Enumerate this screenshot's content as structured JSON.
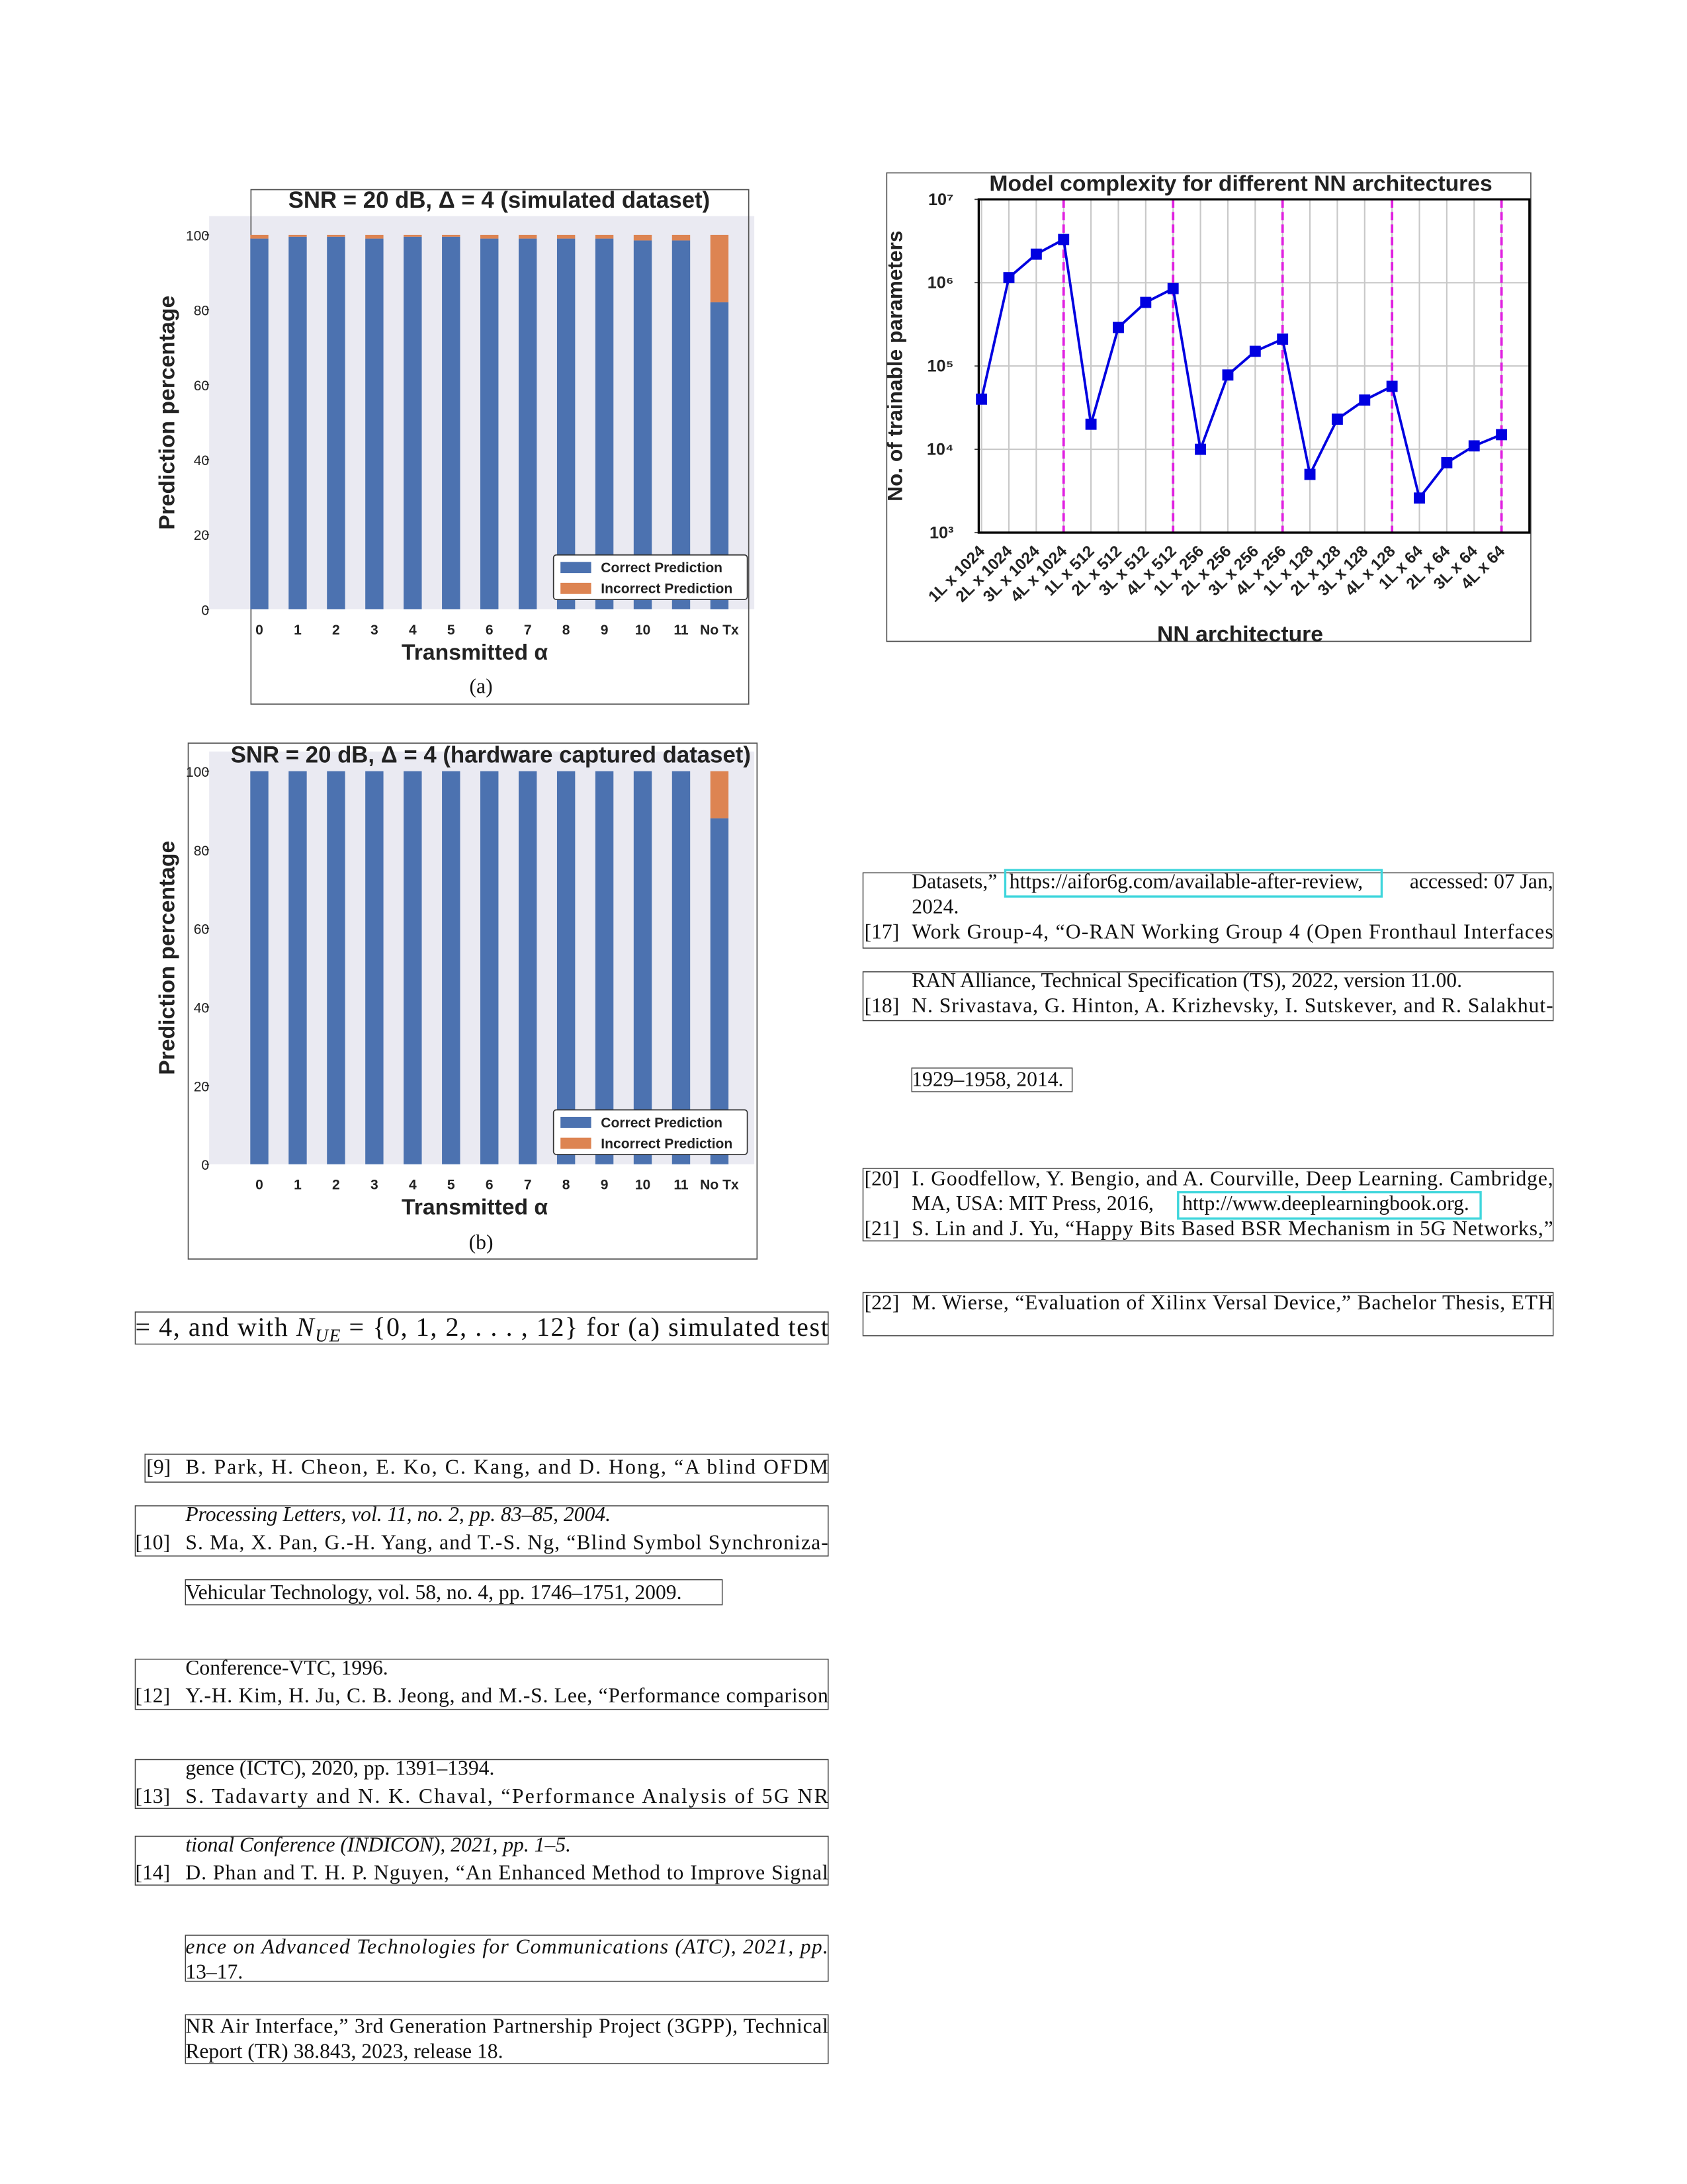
{
  "chart_data": [
    {
      "type": "bar",
      "stacked": true,
      "title": "SNR = 20 dB, Δ = 4 (simulated dataset)",
      "x_label": "Transmitted α",
      "y_label": "Prediction percentage",
      "caption": "(a)",
      "categories": [
        "0",
        "1",
        "2",
        "3",
        "4",
        "5",
        "6",
        "7",
        "8",
        "9",
        "10",
        "11",
        "No Tx"
      ],
      "series": [
        {
          "name": "Correct Prediction",
          "color": "#4c72b0",
          "values": [
            99,
            99.5,
            99.5,
            99,
            99.5,
            99.5,
            99,
            99,
            99,
            99,
            98.5,
            98.5,
            82
          ]
        },
        {
          "name": "Incorrect Prediction",
          "color": "#dd8452",
          "values": [
            1,
            0.5,
            0.5,
            1,
            0.5,
            0.5,
            1,
            1,
            1,
            1,
            1.5,
            1.5,
            18
          ]
        }
      ],
      "ylim": [
        0,
        105
      ],
      "yticks": [
        0,
        20,
        40,
        60,
        80,
        100
      ],
      "grid": false,
      "legend": "lower right",
      "background": "#eaeaf2"
    },
    {
      "type": "bar",
      "stacked": true,
      "title": "SNR = 20 dB, Δ = 4 (hardware captured dataset)",
      "x_label": "Transmitted α",
      "y_label": "Prediction percentage",
      "caption": "(b)",
      "categories": [
        "0",
        "1",
        "2",
        "3",
        "4",
        "5",
        "6",
        "7",
        "8",
        "9",
        "10",
        "11",
        "No Tx"
      ],
      "series": [
        {
          "name": "Correct Prediction",
          "color": "#4c72b0",
          "values": [
            100,
            100,
            100,
            100,
            100,
            100,
            100,
            100,
            100,
            100,
            100,
            100,
            88
          ]
        },
        {
          "name": "Incorrect Prediction",
          "color": "#dd8452",
          "values": [
            0,
            0,
            0,
            0,
            0,
            0,
            0,
            0,
            0,
            0,
            0,
            0,
            12
          ]
        }
      ],
      "ylim": [
        0,
        105
      ],
      "yticks": [
        0,
        20,
        40,
        60,
        80,
        100
      ],
      "grid": false,
      "legend": "lower right",
      "background": "#eaeaf2"
    },
    {
      "type": "line",
      "title": "Model complexity for different NN architectures",
      "x_label": "NN architecture",
      "y_label": "No. of trainable parameters",
      "categories": [
        "1L x 1024",
        "2L x 1024",
        "3L x 1024",
        "4L x 1024",
        "1L x 512",
        "2L x 512",
        "3L x 512",
        "4L x 512",
        "1L x 256",
        "2L x 256",
        "3L x 256",
        "4L x 256",
        "1L x 128",
        "2L x 128",
        "3L x 128",
        "4L x 128",
        "1L x 64",
        "2L x 64",
        "3L x 64",
        "4L x 64"
      ],
      "values": [
        40000,
        1150000,
        2200000,
        3300000,
        20000,
        290000,
        580000,
        850000,
        10000,
        78000,
        150000,
        210000,
        5000,
        23000,
        39000,
        57000,
        2600,
        6900,
        11000,
        15000
      ],
      "color": "#0000e0",
      "marker": "square",
      "log_y": true,
      "ylim": [
        1000,
        10000000
      ],
      "yticks": [
        {
          "value": 1000,
          "label": "10³"
        },
        {
          "value": 10000,
          "label": "10⁴"
        },
        {
          "value": 100000,
          "label": "10⁵"
        },
        {
          "value": 1000000,
          "label": "10⁶"
        },
        {
          "value": 10000000,
          "label": "10⁷"
        }
      ],
      "grid": true,
      "vlines": [
        "4L x 1024",
        "4L x 512",
        "4L x 256",
        "4L x 128",
        "4L x 64"
      ],
      "vline_color": "#e020e0"
    }
  ],
  "body_text": [
    "= 4, and with ",
    "N",
    "UE",
    " = {0, 1, 2, . . . , 12} for (a) simulated test"
  ],
  "left_column": [
    {
      "label": "[9]",
      "text": "B. Park, H. Cheon, E. Ko, C. Kang, and D. Hong, “A blind OFDM"
    },
    {
      "text": "Processing Letters, vol. 11, no. 2, pp. 83–85, 2004."
    },
    {
      "label": "[10]",
      "text": "S. Ma, X. Pan, G.-H. Yang, and T.-S. Ng, “Blind Symbol Synchroniza-"
    },
    {
      "text": "Vehicular Technology, vol. 58, no. 4, pp. 1746–1751, 2009."
    },
    {
      "text": "Conference-VTC, 1996."
    },
    {
      "label": "[12]",
      "text": "Y.-H. Kim, H. Ju, C. B. Jeong, and M.-S. Lee, “Performance comparison"
    },
    {
      "text": "gence (ICTC), 2020, pp. 1391–1394."
    },
    {
      "label": "[13]",
      "text": "S. Tadavarty and N. K. Chaval, “Performance Analysis of 5G NR"
    },
    {
      "text": "tional Conference (INDICON), 2021, pp. 1–5."
    },
    {
      "label": "[14]",
      "text": "D. Phan and T. H. P. Nguyen, “An Enhanced Method to Improve Signal"
    },
    {
      "text": "ence on Advanced Technologies for Communications (ATC), 2021, pp."
    },
    {
      "text": "13–17."
    },
    {
      "text": "NR Air Interface,” 3rd Generation Partnership Project (3GPP), Technical"
    },
    {
      "text": "Report (TR) 38.843, 2023, release 18."
    }
  ],
  "right_column": [
    {
      "text": "Datasets,”",
      "link": "https://aifor6g.com/available-after-review,",
      "after": "accessed: 07 Jan,"
    },
    {
      "text": "2024."
    },
    {
      "label": "[17]",
      "text": "Work Group-4, “O-RAN Working Group 4 (Open Fronthaul Interfaces"
    },
    {
      "text": "RAN Alliance, Technical Specification (TS), 2022, version 11.00."
    },
    {
      "label": "[18]",
      "text": "N. Srivastava, G. Hinton, A. Krizhevsky, I. Sutskever, and R. Salakhut-"
    },
    {
      "text": "1929–1958, 2014."
    },
    {
      "label": "[20]",
      "text": "I. Goodfellow, Y. Bengio, and A. Courville, Deep Learning.  Cambridge,"
    },
    {
      "text": "MA, USA: MIT Press, 2016,",
      "link": "http://www.deeplearningbook.org."
    },
    {
      "label": "[21]",
      "text": "S. Lin and J. Yu, “Happy Bits Based BSR Mechanism in 5G Networks,”"
    },
    {
      "label": "[22]",
      "text": "M. Wierse, “Evaluation of Xilinx Versal Device,” Bachelor Thesis, ETH"
    }
  ]
}
